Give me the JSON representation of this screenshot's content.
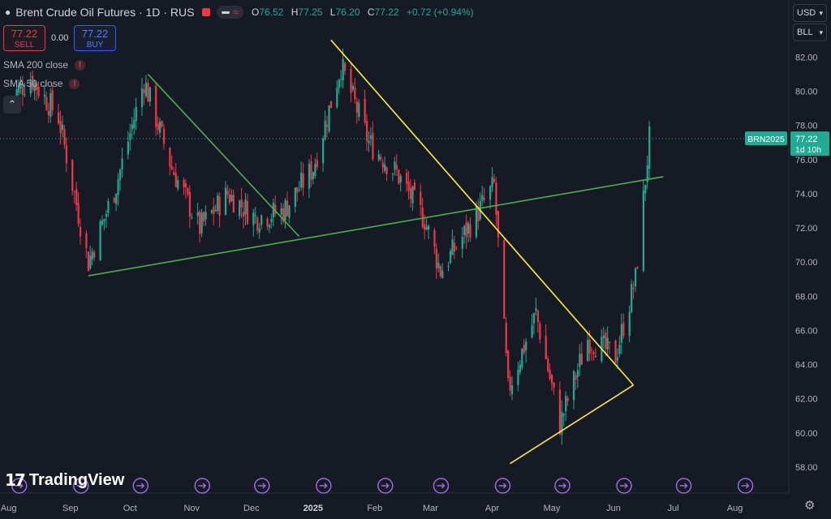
{
  "header": {
    "title": "Brent Crude Oil Futures · 1D · RUS",
    "ohlc": {
      "open_label": "O",
      "open": "76.52",
      "high_label": "H",
      "high": "77.25",
      "low_label": "L",
      "low": "76.20",
      "close_label": "C",
      "close": "77.22",
      "change": "+0.72 (+0.94%)"
    },
    "colors": {
      "up": "#22ab94",
      "down": "#f23645",
      "background": "#161a25"
    }
  },
  "trade": {
    "sell_price": "77.22",
    "sell_label": "SELL",
    "spread": "0.00",
    "buy_price": "77.22",
    "buy_label": "BUY"
  },
  "indicators": [
    {
      "label": "SMA 200 close"
    },
    {
      "label": "SMA 50 close"
    }
  ],
  "price_scale": {
    "currency": "USD",
    "unit": "BLL",
    "symbol_tag": "BRN2025",
    "last_price_tag": "77.22",
    "countdown": "1d 10h"
  },
  "branding": {
    "logo_text": "TradingView"
  },
  "chart_data": {
    "type": "candlestick",
    "title": "Brent Crude Oil Futures · 1D · RUS",
    "x_tick_labels": [
      "Aug",
      "Sep",
      "Oct",
      "Nov",
      "Dec",
      "2025",
      "Feb",
      "Mar",
      "Apr",
      "May",
      "Jun",
      "Jul",
      "Aug"
    ],
    "y_tick_labels": [
      "58.00",
      "60.00",
      "62.00",
      "64.00",
      "66.00",
      "68.00",
      "70.00",
      "72.00",
      "74.00",
      "76.00",
      "78.00",
      "80.00",
      "82.00"
    ],
    "ylim": [
      57,
      84
    ],
    "last_price": 77.22,
    "grid": false,
    "closes_path": [
      {
        "date": "2024-08-01",
        "close": 79.5
      },
      {
        "date": "2024-08-12",
        "close": 80.8
      },
      {
        "date": "2024-08-26",
        "close": 78.5
      },
      {
        "date": "2024-09-10",
        "close": 70.0
      },
      {
        "date": "2024-09-24",
        "close": 74.5
      },
      {
        "date": "2024-10-08",
        "close": 80.6
      },
      {
        "date": "2024-10-22",
        "close": 75.5
      },
      {
        "date": "2024-11-05",
        "close": 72.0
      },
      {
        "date": "2024-11-19",
        "close": 74.0
      },
      {
        "date": "2024-12-03",
        "close": 72.6
      },
      {
        "date": "2024-12-17",
        "close": 73.0
      },
      {
        "date": "2025-01-01",
        "close": 75.5
      },
      {
        "date": "2025-01-15",
        "close": 81.5
      },
      {
        "date": "2025-01-29",
        "close": 77.0
      },
      {
        "date": "2025-02-12",
        "close": 75.2
      },
      {
        "date": "2025-02-26",
        "close": 72.5
      },
      {
        "date": "2025-03-06",
        "close": 69.5
      },
      {
        "date": "2025-03-20",
        "close": 72.0
      },
      {
        "date": "2025-04-02",
        "close": 74.5
      },
      {
        "date": "2025-04-09",
        "close": 62.5
      },
      {
        "date": "2025-04-23",
        "close": 67.0
      },
      {
        "date": "2025-05-05",
        "close": 60.5
      },
      {
        "date": "2025-05-19",
        "close": 65.5
      },
      {
        "date": "2025-06-02",
        "close": 64.5
      },
      {
        "date": "2025-06-12",
        "close": 69.0
      },
      {
        "date": "2025-06-19",
        "close": 77.2
      }
    ],
    "trendlines": [
      {
        "color": "#4caf50",
        "from": {
          "date": "2024-09-10",
          "price": 69.2
        },
        "to": {
          "date": "2025-06-26",
          "price": 75.0
        }
      },
      {
        "color": "#4caf50",
        "from": {
          "date": "2024-10-10",
          "price": 81.0
        },
        "to": {
          "date": "2024-12-25",
          "price": 71.5
        }
      },
      {
        "color": "#ffeb3b",
        "from": {
          "date": "2025-01-10",
          "price": 83.0
        },
        "to": {
          "date": "2025-06-11",
          "price": 62.8
        }
      },
      {
        "color": "#ffeb3b",
        "from": {
          "date": "2025-04-10",
          "price": 58.2
        },
        "to": {
          "date": "2025-06-11",
          "price": 62.8
        }
      }
    ]
  }
}
